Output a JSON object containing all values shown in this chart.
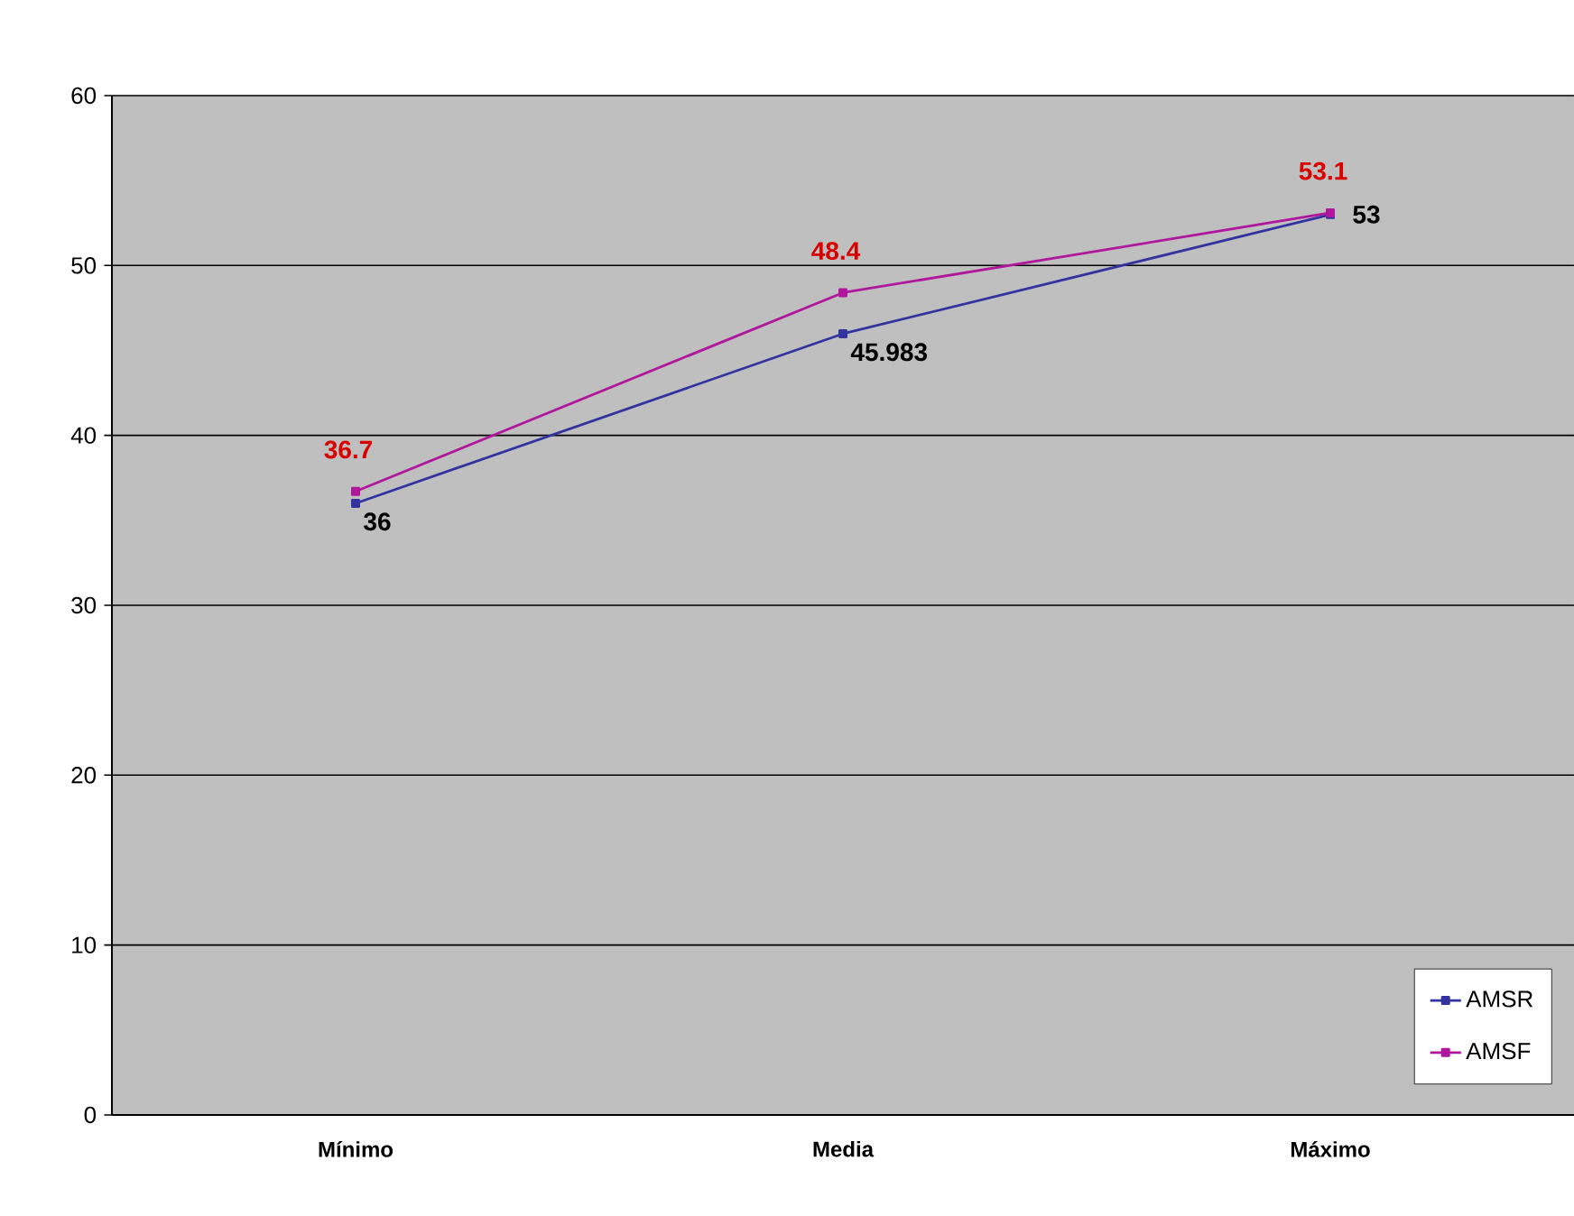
{
  "chart_data": {
    "type": "line",
    "categories": [
      "Mínimo",
      "Media",
      "Máximo"
    ],
    "series": [
      {
        "name": "AMSR",
        "color": "#3333a0",
        "values": [
          36,
          45.983,
          53
        ]
      },
      {
        "name": "AMSF",
        "color": "#b0179c",
        "values": [
          36.7,
          48.4,
          53.1
        ]
      }
    ],
    "ylim": [
      0,
      60
    ],
    "yticks": [
      0,
      10,
      20,
      30,
      40,
      50,
      60
    ],
    "grid": "y",
    "legend": "bottom right",
    "marker": "square",
    "line_style": "solid",
    "data_labels": true
  }
}
